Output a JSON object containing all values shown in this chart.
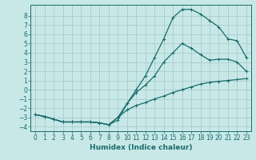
{
  "title": "",
  "xlabel": "Humidex (Indice chaleur)",
  "bg_color": "#c8e8e8",
  "grid_color": "#a8cccc",
  "line_color": "#1a6b6b",
  "xlim": [
    -0.5,
    23.5
  ],
  "ylim": [
    -4.5,
    9.2
  ],
  "xticks": [
    0,
    1,
    2,
    3,
    4,
    5,
    6,
    7,
    8,
    9,
    10,
    11,
    12,
    13,
    14,
    15,
    16,
    17,
    18,
    19,
    20,
    21,
    22,
    23
  ],
  "yticks": [
    -4,
    -3,
    -2,
    -1,
    0,
    1,
    2,
    3,
    4,
    5,
    6,
    7,
    8
  ],
  "series": [
    {
      "x": [
        0,
        1,
        2,
        3,
        4,
        5,
        6,
        7,
        8,
        9,
        10,
        11,
        12,
        13,
        14,
        15,
        16,
        17,
        18,
        19,
        20,
        21,
        22,
        23
      ],
      "y": [
        -2.7,
        -2.9,
        -3.2,
        -3.5,
        -3.5,
        -3.5,
        -3.5,
        -3.6,
        -3.8,
        -3.3,
        -1.5,
        0.0,
        1.5,
        3.5,
        5.5,
        7.8,
        8.7,
        8.7,
        8.2,
        7.5,
        6.8,
        5.5,
        5.3,
        3.5
      ]
    },
    {
      "x": [
        0,
        1,
        2,
        3,
        4,
        5,
        6,
        7,
        8,
        9,
        10,
        11,
        12,
        13,
        14,
        15,
        16,
        17,
        18,
        19,
        20,
        21,
        22,
        23
      ],
      "y": [
        -2.7,
        -2.9,
        -3.2,
        -3.5,
        -3.5,
        -3.5,
        -3.5,
        -3.6,
        -3.8,
        -3.0,
        -1.5,
        -0.3,
        0.5,
        1.5,
        3.0,
        4.0,
        5.0,
        4.5,
        3.8,
        3.2,
        3.3,
        3.3,
        3.0,
        2.0
      ]
    },
    {
      "x": [
        0,
        1,
        2,
        3,
        4,
        5,
        6,
        7,
        8,
        9,
        10,
        11,
        12,
        13,
        14,
        15,
        16,
        17,
        18,
        19,
        20,
        21,
        22,
        23
      ],
      "y": [
        -2.7,
        -2.9,
        -3.2,
        -3.5,
        -3.5,
        -3.5,
        -3.5,
        -3.6,
        -3.8,
        -3.0,
        -2.2,
        -1.7,
        -1.4,
        -1.0,
        -0.7,
        -0.3,
        0.0,
        0.3,
        0.6,
        0.8,
        0.9,
        1.0,
        1.1,
        1.2
      ]
    }
  ]
}
